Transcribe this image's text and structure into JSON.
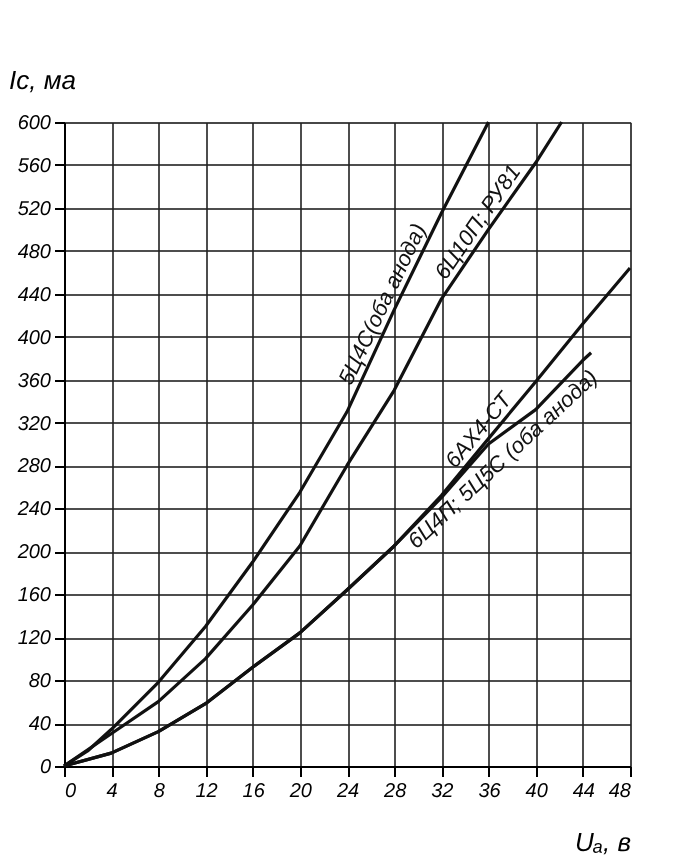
{
  "chart_data": {
    "type": "line",
    "xlabel": "Uₐ, в",
    "ylabel": "Ic, ма",
    "xlim": [
      0,
      48
    ],
    "xticks": [
      0,
      4,
      8,
      12,
      16,
      20,
      24,
      28,
      32,
      36,
      40,
      44,
      48
    ],
    "ylim": [
      0,
      600
    ],
    "yticks": [
      0,
      40,
      80,
      120,
      160,
      200,
      240,
      280,
      320,
      360,
      400,
      440,
      480,
      520,
      560,
      600
    ],
    "grid": true,
    "legend": false,
    "marker": "none",
    "line_style": "solid",
    "series": [
      {
        "name": "5Ц4С(оба анода)",
        "color": "#111111",
        "x": [
          0,
          2,
          4,
          8,
          12,
          16,
          20,
          24,
          28,
          32,
          36
        ],
        "values": [
          0,
          14,
          34,
          78,
          130,
          190,
          255,
          330,
          425,
          515,
          600
        ]
      },
      {
        "name": "6Ц10П; РУ81",
        "color": "#111111",
        "x": [
          0,
          4,
          8,
          12,
          16,
          20,
          24,
          28,
          32,
          36,
          40,
          42.2
        ],
        "values": [
          0,
          30,
          60,
          100,
          150,
          205,
          280,
          350,
          435,
          500,
          562,
          600
        ]
      },
      {
        "name": "6АХ4-СТ",
        "color": "#111111",
        "x": [
          0,
          4,
          8,
          12,
          16,
          20,
          24,
          28,
          32,
          36,
          40,
          44,
          48
        ],
        "values": [
          0,
          12,
          32,
          58,
          92,
          124,
          164,
          205,
          252,
          305,
          358,
          412,
          464
        ]
      },
      {
        "name": "6Ц4П; 5Ц5С (оба анода)",
        "color": "#111111",
        "x": [
          0,
          4,
          8,
          12,
          16,
          20,
          24,
          28,
          32,
          36,
          40,
          44,
          44.7
        ],
        "values": [
          0,
          12,
          32,
          58,
          92,
          124,
          164,
          205,
          250,
          300,
          332,
          378,
          385
        ]
      }
    ]
  }
}
